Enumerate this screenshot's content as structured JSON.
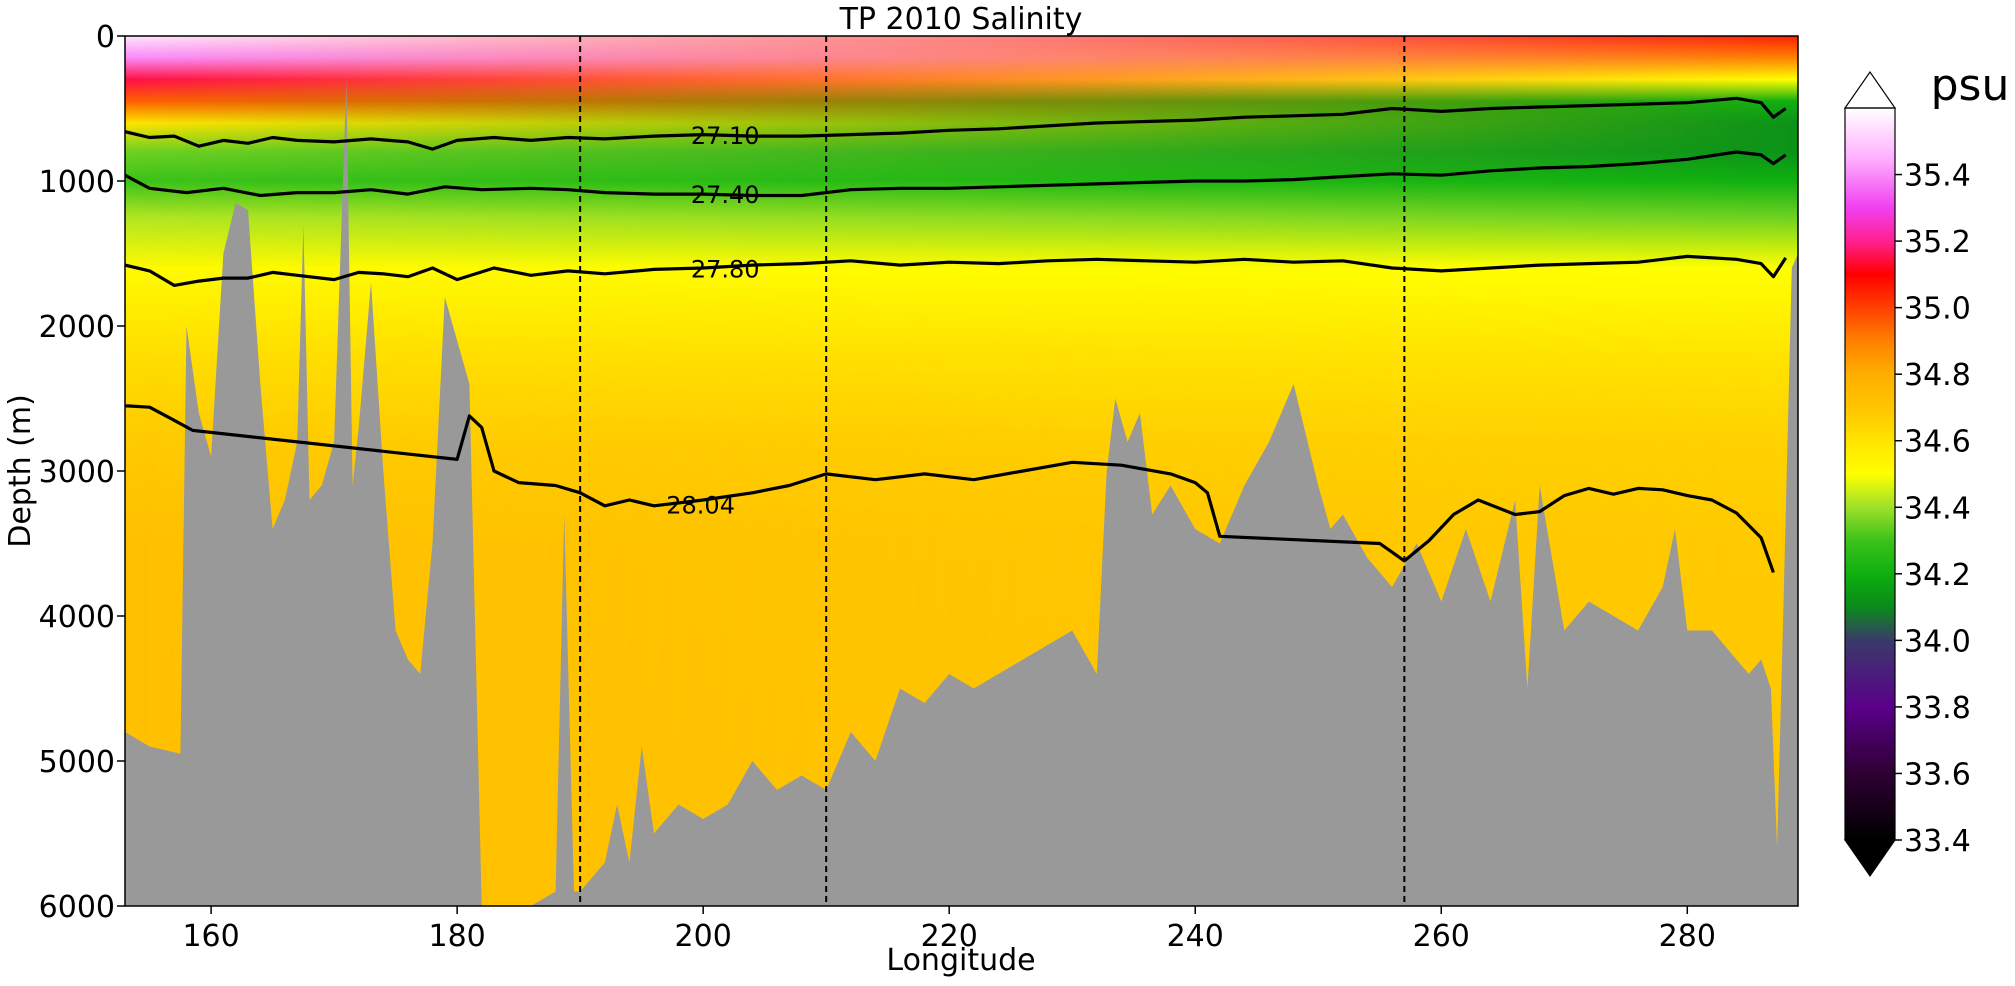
{
  "chart_data": {
    "type": "heatmap",
    "title": "TP 2010 Salinity",
    "xlabel": "Longitude",
    "ylabel": "Depth (m)",
    "xlim": [
      153,
      289
    ],
    "ylim": [
      6000,
      0
    ],
    "x_ticks": [
      160,
      180,
      200,
      220,
      240,
      260,
      280
    ],
    "y_ticks": [
      0,
      1000,
      2000,
      3000,
      4000,
      5000,
      6000
    ],
    "grid": false,
    "colorbar": {
      "label": "psu",
      "range": [
        33.4,
        35.6
      ],
      "ticks": [
        33.4,
        33.6,
        33.8,
        34.0,
        34.2,
        34.4,
        34.6,
        34.8,
        35.0,
        35.2,
        35.4
      ],
      "extend": "both"
    },
    "stops": [
      {
        "v": 33.4,
        "c": "#000000"
      },
      {
        "v": 33.6,
        "c": "#2e0033"
      },
      {
        "v": 33.8,
        "c": "#5a008a"
      },
      {
        "v": 34.0,
        "c": "#3a3a6a"
      },
      {
        "v": 34.1,
        "c": "#0a8a1a"
      },
      {
        "v": 34.2,
        "c": "#0fb010"
      },
      {
        "v": 34.3,
        "c": "#3cc21a"
      },
      {
        "v": 34.4,
        "c": "#9ee02a"
      },
      {
        "v": 34.5,
        "c": "#ffff00"
      },
      {
        "v": 34.6,
        "c": "#ffe400"
      },
      {
        "v": 34.7,
        "c": "#ffc400"
      },
      {
        "v": 34.8,
        "c": "#ffae00"
      },
      {
        "v": 34.9,
        "c": "#ff8000"
      },
      {
        "v": 35.0,
        "c": "#ff4000"
      },
      {
        "v": 35.1,
        "c": "#ff0000"
      },
      {
        "v": 35.2,
        "c": "#ff2090"
      },
      {
        "v": 35.3,
        "c": "#f040f0"
      },
      {
        "v": 35.45,
        "c": "#ffb0ff"
      },
      {
        "v": 35.6,
        "c": "#ffffff"
      }
    ],
    "salinity_profile": [
      {
        "depth": 0,
        "west": 35.55,
        "east": 35.05
      },
      {
        "depth": 150,
        "west": 35.4,
        "east": 34.9
      },
      {
        "depth": 300,
        "west": 35.15,
        "east": 34.5
      },
      {
        "depth": 450,
        "west": 34.95,
        "east": 34.2
      },
      {
        "depth": 600,
        "west": 34.6,
        "east": 34.12
      },
      {
        "depth": 800,
        "west": 34.35,
        "east": 34.12
      },
      {
        "depth": 1000,
        "west": 34.3,
        "east": 34.2
      },
      {
        "depth": 1250,
        "west": 34.42,
        "east": 34.35
      },
      {
        "depth": 1600,
        "west": 34.52,
        "east": 34.5
      },
      {
        "depth": 2200,
        "west": 34.62,
        "east": 34.6
      },
      {
        "depth": 2800,
        "west": 34.68,
        "east": 34.66
      },
      {
        "depth": 3500,
        "west": 34.72,
        "east": 34.68
      },
      {
        "depth": 6000,
        "west": 34.72,
        "east": 34.7
      }
    ],
    "bathymetry": [
      [
        153,
        4800
      ],
      [
        155,
        4900
      ],
      [
        157.5,
        4950
      ],
      [
        158,
        2000
      ],
      [
        159,
        2600
      ],
      [
        160,
        2900
      ],
      [
        161,
        1500
      ],
      [
        162,
        1150
      ],
      [
        163,
        1200
      ],
      [
        164,
        2400
      ],
      [
        165,
        3400
      ],
      [
        166,
        3200
      ],
      [
        167,
        2800
      ],
      [
        167.5,
        1300
      ],
      [
        168,
        3200
      ],
      [
        169,
        3100
      ],
      [
        170,
        2800
      ],
      [
        171,
        300
      ],
      [
        171.5,
        3100
      ],
      [
        172,
        2700
      ],
      [
        173,
        1700
      ],
      [
        174,
        3000
      ],
      [
        175,
        4100
      ],
      [
        176,
        4300
      ],
      [
        177,
        4400
      ],
      [
        178,
        3500
      ],
      [
        179,
        1800
      ],
      [
        180,
        2100
      ],
      [
        181,
        2400
      ],
      [
        182,
        6000
      ],
      [
        186,
        6000
      ],
      [
        188,
        5900
      ],
      [
        188.7,
        3300
      ],
      [
        189.5,
        5900
      ],
      [
        190,
        5900
      ],
      [
        192,
        5700
      ],
      [
        193,
        5300
      ],
      [
        194,
        5700
      ],
      [
        195,
        4900
      ],
      [
        196,
        5500
      ],
      [
        198,
        5300
      ],
      [
        200,
        5400
      ],
      [
        202,
        5300
      ],
      [
        204,
        5000
      ],
      [
        206,
        5200
      ],
      [
        208,
        5100
      ],
      [
        210,
        5200
      ],
      [
        212,
        4800
      ],
      [
        214,
        5000
      ],
      [
        216,
        4500
      ],
      [
        218,
        4600
      ],
      [
        220,
        4400
      ],
      [
        222,
        4500
      ],
      [
        224,
        4400
      ],
      [
        226,
        4300
      ],
      [
        228,
        4200
      ],
      [
        230,
        4100
      ],
      [
        232,
        4400
      ],
      [
        232.8,
        3000
      ],
      [
        233.5,
        2500
      ],
      [
        234.5,
        2800
      ],
      [
        235.5,
        2600
      ],
      [
        236.5,
        3300
      ],
      [
        238,
        3100
      ],
      [
        240,
        3400
      ],
      [
        242,
        3500
      ],
      [
        244,
        3100
      ],
      [
        246,
        2800
      ],
      [
        248,
        2400
      ],
      [
        250,
        3100
      ],
      [
        251,
        3400
      ],
      [
        252,
        3300
      ],
      [
        254,
        3600
      ],
      [
        256,
        3800
      ],
      [
        258,
        3500
      ],
      [
        260,
        3900
      ],
      [
        262,
        3400
      ],
      [
        264,
        3900
      ],
      [
        266,
        3200
      ],
      [
        267,
        4500
      ],
      [
        268,
        3100
      ],
      [
        270,
        4100
      ],
      [
        272,
        3900
      ],
      [
        274,
        4000
      ],
      [
        276,
        4100
      ],
      [
        278,
        3800
      ],
      [
        279,
        3400
      ],
      [
        280,
        4100
      ],
      [
        282,
        4100
      ],
      [
        284,
        4300
      ],
      [
        285,
        4400
      ],
      [
        286,
        4300
      ],
      [
        286.8,
        4500
      ],
      [
        287.3,
        5600
      ],
      [
        287.8,
        4000
      ],
      [
        288.5,
        1600
      ],
      [
        289,
        1500
      ]
    ],
    "isopycnals": [
      {
        "label": "27.10",
        "label_x": 199,
        "points": [
          [
            153,
            660
          ],
          [
            155,
            700
          ],
          [
            157,
            690
          ],
          [
            159,
            760
          ],
          [
            161,
            720
          ],
          [
            163,
            740
          ],
          [
            165,
            700
          ],
          [
            167,
            720
          ],
          [
            170,
            730
          ],
          [
            173,
            710
          ],
          [
            176,
            730
          ],
          [
            178,
            780
          ],
          [
            180,
            720
          ],
          [
            183,
            700
          ],
          [
            186,
            720
          ],
          [
            189,
            700
          ],
          [
            192,
            710
          ],
          [
            196,
            690
          ],
          [
            200,
            680
          ],
          [
            204,
            690
          ],
          [
            208,
            690
          ],
          [
            212,
            680
          ],
          [
            216,
            670
          ],
          [
            220,
            650
          ],
          [
            224,
            640
          ],
          [
            228,
            620
          ],
          [
            232,
            600
          ],
          [
            236,
            590
          ],
          [
            240,
            580
          ],
          [
            244,
            560
          ],
          [
            248,
            550
          ],
          [
            252,
            540
          ],
          [
            256,
            500
          ],
          [
            260,
            520
          ],
          [
            264,
            500
          ],
          [
            268,
            490
          ],
          [
            272,
            480
          ],
          [
            276,
            470
          ],
          [
            280,
            460
          ],
          [
            284,
            430
          ],
          [
            286,
            460
          ],
          [
            287,
            560
          ],
          [
            288,
            500
          ]
        ]
      },
      {
        "label": "27.40",
        "label_x": 199,
        "points": [
          [
            153,
            960
          ],
          [
            155,
            1050
          ],
          [
            158,
            1080
          ],
          [
            161,
            1050
          ],
          [
            164,
            1100
          ],
          [
            167,
            1080
          ],
          [
            170,
            1080
          ],
          [
            173,
            1060
          ],
          [
            176,
            1090
          ],
          [
            179,
            1040
          ],
          [
            182,
            1060
          ],
          [
            186,
            1050
          ],
          [
            189,
            1060
          ],
          [
            192,
            1080
          ],
          [
            196,
            1090
          ],
          [
            200,
            1090
          ],
          [
            204,
            1100
          ],
          [
            208,
            1100
          ],
          [
            212,
            1060
          ],
          [
            216,
            1050
          ],
          [
            220,
            1050
          ],
          [
            224,
            1040
          ],
          [
            228,
            1030
          ],
          [
            232,
            1020
          ],
          [
            236,
            1010
          ],
          [
            240,
            1000
          ],
          [
            244,
            1000
          ],
          [
            248,
            990
          ],
          [
            252,
            970
          ],
          [
            256,
            950
          ],
          [
            260,
            960
          ],
          [
            264,
            930
          ],
          [
            268,
            910
          ],
          [
            272,
            900
          ],
          [
            276,
            880
          ],
          [
            280,
            850
          ],
          [
            284,
            800
          ],
          [
            286,
            820
          ],
          [
            287,
            880
          ],
          [
            288,
            820
          ]
        ]
      },
      {
        "label": "27.80",
        "label_x": 199,
        "points": [
          [
            153,
            1580
          ],
          [
            155,
            1620
          ],
          [
            157,
            1720
          ],
          [
            159,
            1690
          ],
          [
            161,
            1670
          ],
          [
            163,
            1670
          ],
          [
            165,
            1630
          ],
          [
            167,
            1650
          ],
          [
            170,
            1680
          ],
          [
            172,
            1630
          ],
          [
            174,
            1640
          ],
          [
            176,
            1660
          ],
          [
            178,
            1600
          ],
          [
            180,
            1680
          ],
          [
            183,
            1600
          ],
          [
            186,
            1650
          ],
          [
            189,
            1620
          ],
          [
            192,
            1640
          ],
          [
            196,
            1610
          ],
          [
            200,
            1600
          ],
          [
            204,
            1580
          ],
          [
            208,
            1570
          ],
          [
            212,
            1550
          ],
          [
            216,
            1580
          ],
          [
            220,
            1560
          ],
          [
            224,
            1570
          ],
          [
            228,
            1550
          ],
          [
            232,
            1540
          ],
          [
            236,
            1550
          ],
          [
            240,
            1560
          ],
          [
            244,
            1540
          ],
          [
            248,
            1560
          ],
          [
            252,
            1550
          ],
          [
            256,
            1600
          ],
          [
            260,
            1620
          ],
          [
            264,
            1600
          ],
          [
            268,
            1580
          ],
          [
            272,
            1570
          ],
          [
            276,
            1560
          ],
          [
            280,
            1520
          ],
          [
            284,
            1540
          ],
          [
            286,
            1570
          ],
          [
            287,
            1660
          ],
          [
            288,
            1530
          ]
        ]
      },
      {
        "label": "28.04",
        "label_x": 197,
        "points": [
          [
            153,
            2550
          ],
          [
            155,
            2560
          ],
          [
            157,
            2650
          ],
          [
            158.5,
            2720
          ],
          [
            180,
            2920
          ],
          [
            181,
            2620
          ],
          [
            182,
            2700
          ],
          [
            183,
            3000
          ],
          [
            185,
            3080
          ],
          [
            188,
            3100
          ],
          [
            190,
            3150
          ],
          [
            192,
            3240
          ],
          [
            194,
            3200
          ],
          [
            196,
            3240
          ],
          [
            200,
            3200
          ],
          [
            204,
            3150
          ],
          [
            207,
            3100
          ],
          [
            210,
            3020
          ],
          [
            214,
            3060
          ],
          [
            218,
            3020
          ],
          [
            222,
            3060
          ],
          [
            226,
            3000
          ],
          [
            230,
            2940
          ],
          [
            234,
            2960
          ],
          [
            238,
            3020
          ],
          [
            240,
            3080
          ],
          [
            241,
            3150
          ],
          [
            242,
            3450
          ],
          [
            255,
            3500
          ],
          [
            257,
            3620
          ],
          [
            259,
            3480
          ],
          [
            261,
            3300
          ],
          [
            263,
            3200
          ],
          [
            266,
            3300
          ],
          [
            268,
            3280
          ],
          [
            270,
            3170
          ],
          [
            272,
            3120
          ],
          [
            274,
            3160
          ],
          [
            276,
            3120
          ],
          [
            278,
            3130
          ],
          [
            280,
            3170
          ],
          [
            282,
            3200
          ],
          [
            284,
            3290
          ],
          [
            286,
            3460
          ],
          [
            287,
            3700
          ]
        ]
      }
    ],
    "section_markers": [
      190,
      210,
      257
    ]
  }
}
